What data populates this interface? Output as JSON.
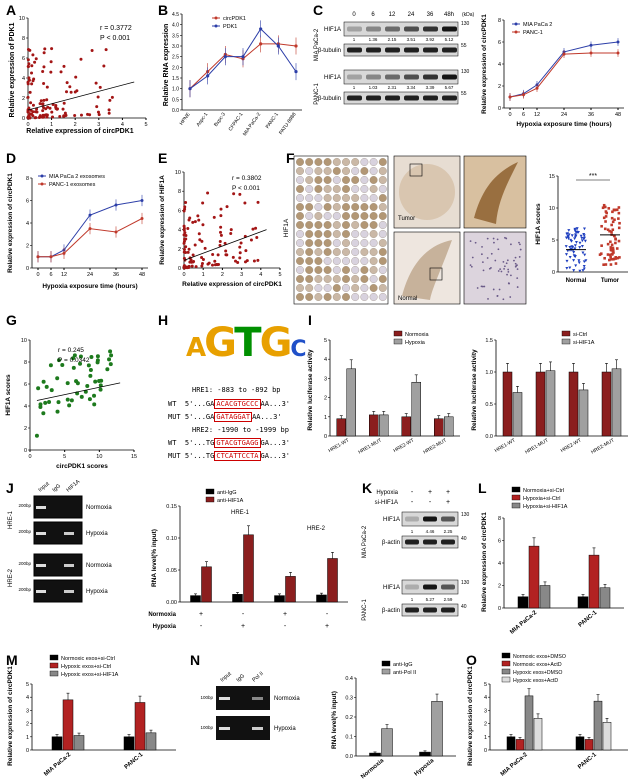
{
  "panels": {
    "A": {
      "label": "A",
      "xlabel": "Relative expression of circPDK1",
      "ylabel": "Relative expression of PDK1",
      "r": "r = 0.3772",
      "p": "P < 0.001",
      "xticks": [
        "0",
        "1",
        "2",
        "3",
        "4",
        "5"
      ],
      "yticks": [
        "0",
        "2",
        "4",
        "6",
        "8",
        "10"
      ]
    },
    "B": {
      "label": "B",
      "ylabel": "Relative RNA expression",
      "ytick": [
        "0.0",
        "0.5",
        "1.0",
        "1.5",
        "2.0",
        "2.5",
        "3.0",
        "3.5",
        "4.0",
        "4.5"
      ],
      "legend": [
        "circPDK1",
        "PDK1"
      ],
      "cats": [
        "HPNE",
        "Aspc-1",
        "Bxpc-3",
        "CFPAC-1",
        "MIA PaCa-2",
        "PANC-1",
        "PATU-8988"
      ]
    },
    "C": {
      "label": "C",
      "times": [
        "0",
        "6",
        "12",
        "24",
        "36",
        "48h"
      ],
      "kda": "(kDa)",
      "rows": [
        "HIF1A",
        "β-tubulin",
        "HIF1A",
        "β-tubulin"
      ],
      "cells": [
        "MIA PaCa-2",
        "PANC-1"
      ],
      "q1": [
        "1",
        "1.36",
        "2.15",
        "3.51",
        "3.92",
        "5.12"
      ],
      "q2": [
        "1",
        "1.03",
        "2.31",
        "3.34",
        "3.39",
        "5.67"
      ],
      "mw": [
        "130",
        "55",
        "130",
        "55"
      ],
      "xlabel": "Hypoxia exposure time (hours)",
      "ylabel": "Relative expression of circPDK1",
      "legend": [
        "MIA PaCa 2",
        "PANC-1"
      ],
      "xt": [
        "0",
        "6",
        "12",
        "24",
        "36",
        "48"
      ],
      "yt": [
        "0",
        "2",
        "4",
        "6",
        "8"
      ]
    },
    "D": {
      "label": "D",
      "legend": [
        "MIA PaCa 2 exosomes",
        "PANC-1 exosomes"
      ],
      "xlabel": "Hypoxia exposure time (hours)",
      "ylabel": "Relative expression of circPDK1",
      "xt": [
        "0",
        "6",
        "12",
        "24",
        "36",
        "48"
      ],
      "yt": [
        "0",
        "2",
        "4",
        "6",
        "8"
      ]
    },
    "E": {
      "label": "E",
      "r": "r = 0.3802",
      "p": "P < 0.001",
      "xlabel": "Relative expression of circPDK1",
      "ylabel": "Relative expression of HIF1A",
      "xt": [
        "0",
        "1",
        "2",
        "3",
        "4",
        "5"
      ],
      "yt": [
        "0",
        "2",
        "4",
        "6",
        "8",
        "10"
      ]
    },
    "F": {
      "label": "F",
      "side": "HIF1A",
      "tumor": "Tumor",
      "normal": "Normal",
      "sig": "***",
      "ylabel": "HIF1A scores",
      "cats": [
        "Normal",
        "Tumor"
      ],
      "yt": [
        "0",
        "5",
        "10",
        "15"
      ]
    },
    "G": {
      "label": "G",
      "r": "r = 0.245",
      "p": "P = 0.0342",
      "xlabel": "circPDK1 scores",
      "ylabel": "HIF1A scores",
      "xt": [
        "0",
        "5",
        "10",
        "15"
      ],
      "yt": [
        "0",
        "2",
        "4",
        "6",
        "8",
        "10"
      ]
    },
    "H": {
      "label": "H",
      "logo": "AGTGC",
      "hre1": "HRE1: -883 to -892 bp",
      "wt1a": "WT  5'...GA",
      "wt1b": "ACACGTGCCC",
      "wt1c": "AA...3'",
      "mut1a": "MUT 5'...GA",
      "mut1b": "GATAGGAT",
      "mut1c": "AA...3'",
      "hre2": "HRE2: -1990 to -1999 bp",
      "wt2a": "WT  5'...TG",
      "wt2b": "GTACGTGAGG",
      "wt2c": "GA...3'",
      "mut2a": "MUT 5'...TG",
      "mut2b": "CTCATTCCTA",
      "mut2c": "GA...3'"
    },
    "I": {
      "label": "I",
      "legend1": [
        "Normoxia",
        "Hypoxia"
      ],
      "legend2": [
        "si-Ctrl",
        "si-HIF1A"
      ],
      "ylabel": "Relative luciferase activity",
      "cats": [
        "HRE1-WT",
        "HRE1-MUT",
        "HRE2-WT",
        "HRE2-MUT"
      ],
      "yt1": [
        "0",
        "1",
        "2",
        "3",
        "4",
        "5"
      ],
      "yt2": [
        "0.0",
        "0.5",
        "1.0",
        "1.5"
      ]
    },
    "J": {
      "label": "J",
      "lanes": [
        "Input",
        "IgG",
        "HIF1A"
      ],
      "rowsl": [
        "HRE-1",
        "HRE-2"
      ],
      "conds": [
        "Normoxia",
        "Hypoxia",
        "Normoxia",
        "Hypoxia"
      ],
      "bp": "200bp",
      "legend": [
        "anti-IgG",
        "anti-HIF1A"
      ],
      "ylabel": "RNA level(% input)",
      "grp": [
        "HRE-1",
        "HRE-2"
      ],
      "rowN": "Normoxia",
      "rowH": "Hypoxia",
      "yt": [
        "0.00",
        "0.05",
        "0.10",
        "0.15"
      ]
    },
    "K": {
      "label": "K",
      "hyp": "Hypoxia",
      "si": "si-HIF1A",
      "rows": [
        "HIF1A",
        "β-actin",
        "HIF1A",
        "β-actin"
      ],
      "cells": [
        "MIA PaCa-2",
        "PANC-1"
      ],
      "q1": [
        "1",
        "4.46",
        "2.25"
      ],
      "q2": [
        "1",
        "5.27",
        "2.59"
      ],
      "mw": [
        "130",
        "40",
        "130",
        "40"
      ]
    },
    "L": {
      "label": "L",
      "legend": [
        "Normoxia+si-Ctrl",
        "Hypoxia+si-Ctrl",
        "Hypoxia+si-HIF1A"
      ],
      "ylabel": "Relative expression of circPDK1",
      "cats": [
        "MIA PaCa-2",
        "PANC-1"
      ],
      "yt": [
        "0",
        "2",
        "4",
        "6",
        "8"
      ]
    },
    "M": {
      "label": "M",
      "legend": [
        "Normoxic exos+si-Ctrl",
        "Hypoxic exos+si-Ctrl",
        "Hypoxic exos+si-HIF1A"
      ],
      "ylabel": "Relative expression of circPDK1",
      "cats": [
        "MIA PaCa-2",
        "PANC-1"
      ],
      "yt": [
        "0",
        "1",
        "2",
        "3",
        "4",
        "5"
      ]
    },
    "N": {
      "label": "N",
      "lanes": [
        "Input",
        "IgG",
        "Pol II"
      ],
      "bp": "100bp",
      "conds": [
        "Normoxia",
        "Hypoxia"
      ],
      "legend": [
        "anti-IgG",
        "anti-Pol II"
      ],
      "ylabel": "RNA level(% input)",
      "cats": [
        "Normoxia",
        "Hypoxia"
      ],
      "yt": [
        "0.0",
        "0.1",
        "0.2",
        "0.3",
        "0.4"
      ]
    },
    "O": {
      "label": "O",
      "legend": [
        "Normoxic exos+DMSO",
        "Normoxic exos+ActD",
        "Hypoxic exos+DMSO",
        "Hypoxic exos+ActD"
      ],
      "ylabel": "Relative expression of circPDK1",
      "cats": [
        "MIA PaCa-2",
        "PANC-1"
      ],
      "yt": [
        "0",
        "1",
        "2",
        "3",
        "4",
        "5"
      ]
    }
  },
  "chart_data": [
    {
      "panel": "B",
      "type": "line",
      "categories": [
        "HPNE",
        "Aspc-1",
        "Bxpc-3",
        "CFPAC-1",
        "MIA PaCa-2",
        "PANC-1",
        "PATU-8988"
      ],
      "series": [
        {
          "name": "circPDK1",
          "values": [
            1.0,
            1.8,
            2.6,
            2.4,
            3.1,
            3.1,
            3.0
          ]
        },
        {
          "name": "PDK1",
          "values": [
            1.0,
            1.6,
            2.5,
            2.5,
            3.8,
            3.0,
            1.8
          ]
        }
      ],
      "ylim": [
        0,
        4.5
      ]
    },
    {
      "panel": "C",
      "type": "line",
      "x": [
        0,
        6,
        12,
        24,
        36,
        48
      ],
      "series": [
        {
          "name": "MIA PaCa 2",
          "values": [
            1,
            1.3,
            2.1,
            5.1,
            5.7,
            6.0
          ]
        },
        {
          "name": "PANC-1",
          "values": [
            1,
            1.2,
            1.8,
            4.9,
            5.0,
            5.0
          ]
        }
      ],
      "ylim": [
        0,
        8
      ]
    },
    {
      "panel": "D",
      "type": "line",
      "x": [
        0,
        6,
        12,
        24,
        36,
        48
      ],
      "series": [
        {
          "name": "MIA PaCa 2 exosomes",
          "values": [
            1,
            1.0,
            1.6,
            4.7,
            5.6,
            6.0
          ]
        },
        {
          "name": "PANC-1 exosomes",
          "values": [
            1,
            1.0,
            1.3,
            3.5,
            3.2,
            4.4
          ]
        }
      ],
      "ylim": [
        0,
        8
      ]
    },
    {
      "panel": "F",
      "type": "scatter",
      "categories": [
        "Normal",
        "Tumor"
      ],
      "means": [
        3.5,
        5.8
      ],
      "ylim": [
        0,
        15
      ]
    },
    {
      "panel": "I1",
      "type": "bar",
      "categories": [
        "HRE1-WT",
        "HRE1-MUT",
        "HRE2-WT",
        "HRE2-MUT"
      ],
      "series": [
        {
          "name": "Normoxia",
          "values": [
            0.9,
            1.1,
            1.0,
            0.9
          ]
        },
        {
          "name": "Hypoxia",
          "values": [
            3.5,
            1.1,
            2.8,
            1.0
          ]
        }
      ],
      "ylim": [
        0,
        5
      ]
    },
    {
      "panel": "I2",
      "type": "bar",
      "categories": [
        "HRE1-WT",
        "HRE1-MUT",
        "HRE2-WT",
        "HRE2-MUT"
      ],
      "series": [
        {
          "name": "si-Ctrl",
          "values": [
            1.0,
            1.0,
            1.0,
            1.0
          ]
        },
        {
          "name": "si-HIF1A",
          "values": [
            0.68,
            1.02,
            0.72,
            1.05
          ]
        }
      ],
      "ylim": [
        0,
        1.5
      ]
    },
    {
      "panel": "J",
      "type": "bar",
      "categories": [
        "HRE-1 Normoxia",
        "HRE-1 Hypoxia",
        "HRE-2 Normoxia",
        "HRE-2 Hypoxia"
      ],
      "series": [
        {
          "name": "anti-IgG",
          "values": [
            0.01,
            0.012,
            0.01,
            0.011
          ]
        },
        {
          "name": "anti-HIF1A",
          "values": [
            0.055,
            0.105,
            0.04,
            0.068
          ]
        }
      ],
      "ylim": [
        0,
        0.15
      ]
    },
    {
      "panel": "L",
      "type": "bar",
      "categories": [
        "MIA PaCa-2",
        "PANC-1"
      ],
      "series": [
        {
          "name": "Normoxia+si-Ctrl",
          "values": [
            1.0,
            1.0
          ]
        },
        {
          "name": "Hypoxia+si-Ctrl",
          "values": [
            5.5,
            4.7
          ]
        },
        {
          "name": "Hypoxia+si-HIF1A",
          "values": [
            2.0,
            1.8
          ]
        }
      ],
      "ylim": [
        0,
        8
      ]
    },
    {
      "panel": "M",
      "type": "bar",
      "categories": [
        "MIA PaCa-2",
        "PANC-1"
      ],
      "series": [
        {
          "name": "Normoxic exos+si-Ctrl",
          "values": [
            1.0,
            1.0
          ]
        },
        {
          "name": "Hypoxic exos+si-Ctrl",
          "values": [
            3.8,
            3.6
          ]
        },
        {
          "name": "Hypoxic exos+si-HIF1A",
          "values": [
            1.1,
            1.3
          ]
        }
      ],
      "ylim": [
        0,
        5
      ]
    },
    {
      "panel": "N",
      "type": "bar",
      "categories": [
        "Normoxia",
        "Hypoxia"
      ],
      "series": [
        {
          "name": "anti-IgG",
          "values": [
            0.015,
            0.02
          ]
        },
        {
          "name": "anti-Pol II",
          "values": [
            0.14,
            0.28
          ]
        }
      ],
      "ylim": [
        0,
        0.4
      ]
    },
    {
      "panel": "O",
      "type": "bar",
      "categories": [
        "MIA PaCa-2",
        "PANC-1"
      ],
      "series": [
        {
          "name": "Normoxic exos+DMSO",
          "values": [
            1.0,
            1.0
          ]
        },
        {
          "name": "Normoxic exos+ActD",
          "values": [
            0.8,
            0.8
          ]
        },
        {
          "name": "Hypoxic exos+DMSO",
          "values": [
            4.1,
            3.7
          ]
        },
        {
          "name": "Hypoxic exos+ActD",
          "values": [
            2.4,
            2.1
          ]
        }
      ],
      "ylim": [
        0,
        5
      ]
    }
  ]
}
